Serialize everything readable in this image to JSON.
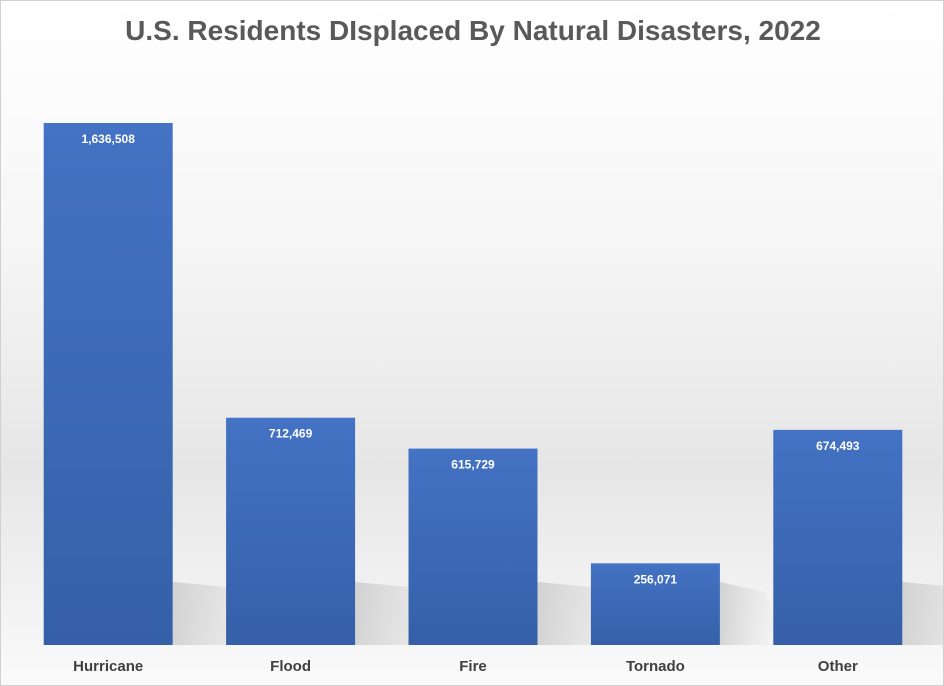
{
  "chart_data": {
    "type": "bar",
    "title": "U.S. Residents DIsplaced By Natural Disasters, 2022",
    "xlabel": "",
    "ylabel": "",
    "categories": [
      "Hurricane",
      "Flood",
      "Fire",
      "Tornado",
      "Other"
    ],
    "values": [
      1636508,
      712469,
      615729,
      256071,
      674493
    ],
    "value_labels": [
      "1,636,508",
      "712,469",
      "615,729",
      "256,071",
      "674,493"
    ],
    "ylim": [
      0,
      1636508
    ],
    "grid": false,
    "legend": "none",
    "bar_color": "#4472C4",
    "bar_color_dark": "#3560A8"
  }
}
